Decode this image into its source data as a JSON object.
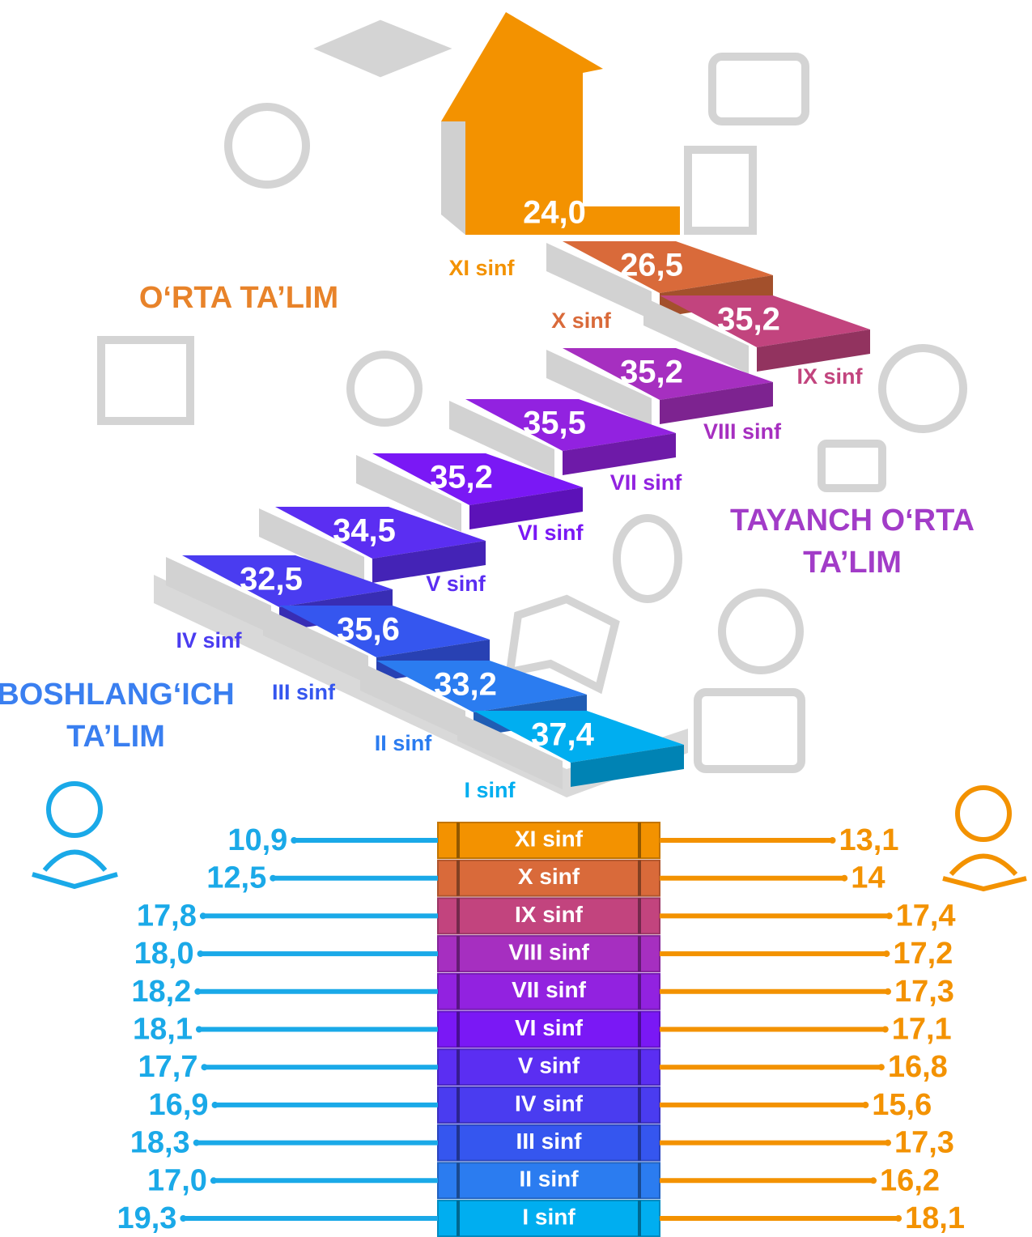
{
  "chart_data": [
    {
      "type": "staircase",
      "categories": [
        "I sinf",
        "II sinf",
        "III sinf",
        "IV sinf",
        "V sinf",
        "VI sinf",
        "VII sinf",
        "VIII sinf",
        "IX sinf",
        "X sinf",
        "XI sinf"
      ],
      "values": [
        37.4,
        33.2,
        35.6,
        32.5,
        34.5,
        35.2,
        35.5,
        35.2,
        35.2,
        26.5,
        24.0
      ],
      "value_labels": [
        "37,4",
        "33,2",
        "35,6",
        "32,5",
        "34,5",
        "35,2",
        "35,5",
        "35,2",
        "35,2",
        "26,5",
        "24,0"
      ],
      "colors": [
        "#00aef0",
        "#2b7cf0",
        "#3556ef",
        "#4a3cf0",
        "#5b2ef2",
        "#7a18f5",
        "#9222e0",
        "#a62fc0",
        "#c2447e",
        "#d96a3a",
        "#f39200"
      ],
      "annotations": [
        {
          "lines": [
            "O‘RTA TA’LIM"
          ],
          "color": "#e8832a"
        },
        {
          "lines": [
            "TAYANCH O‘RTA",
            "TA’LIM"
          ],
          "color": "#a23cc8"
        },
        {
          "lines": [
            "BOSHLANG‘ICH",
            "TA’LIM"
          ],
          "color": "#3a7ff0"
        }
      ]
    },
    {
      "type": "butterfly",
      "categories": [
        "I sinf",
        "II sinf",
        "III sinf",
        "IV sinf",
        "V sinf",
        "VI sinf",
        "VII sinf",
        "VIII sinf",
        "IX sinf",
        "X sinf",
        "XI sinf"
      ],
      "series": [
        {
          "color": "#1aa9e8",
          "values": [
            19.3,
            17.0,
            18.3,
            16.9,
            17.7,
            18.1,
            18.2,
            18.0,
            17.8,
            12.5,
            10.9
          ],
          "value_labels": [
            "19,3",
            "17,0",
            "18,3",
            "16,9",
            "17,7",
            "18,1",
            "18,2",
            "18,0",
            "17,8",
            "12,5",
            "10,9"
          ]
        },
        {
          "color": "#f39200",
          "values": [
            18.1,
            16.2,
            17.3,
            15.6,
            16.8,
            17.1,
            17.3,
            17.2,
            17.4,
            14,
            13.1
          ],
          "value_labels": [
            "18,1",
            "16,2",
            "17,3",
            "15,6",
            "16,8",
            "17,1",
            "17,3",
            "17,2",
            "17,4",
            "14",
            "13,1"
          ]
        }
      ]
    }
  ]
}
